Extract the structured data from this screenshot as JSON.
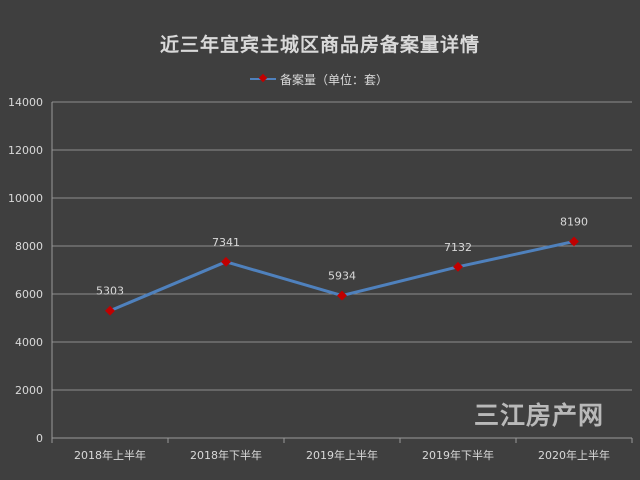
{
  "chart_data": {
    "type": "line",
    "title": "近三年宜宾主城区商品房备案量详情",
    "categories": [
      "2018年上半年",
      "2018年下半年",
      "2019年上半年",
      "2019年下半年",
      "2020年上半年"
    ],
    "series": [
      {
        "name": "备案量（单位：套）",
        "values": [
          5303,
          7341,
          5934,
          7132,
          8190
        ],
        "color": "#4f81bd",
        "marker_color": "#c00000"
      }
    ],
    "ylim": [
      0,
      14000
    ],
    "yticks": [
      0,
      2000,
      4000,
      6000,
      8000,
      10000,
      12000,
      14000
    ],
    "grid": true,
    "legend_position": "top-center"
  },
  "watermark": "三江房产网"
}
